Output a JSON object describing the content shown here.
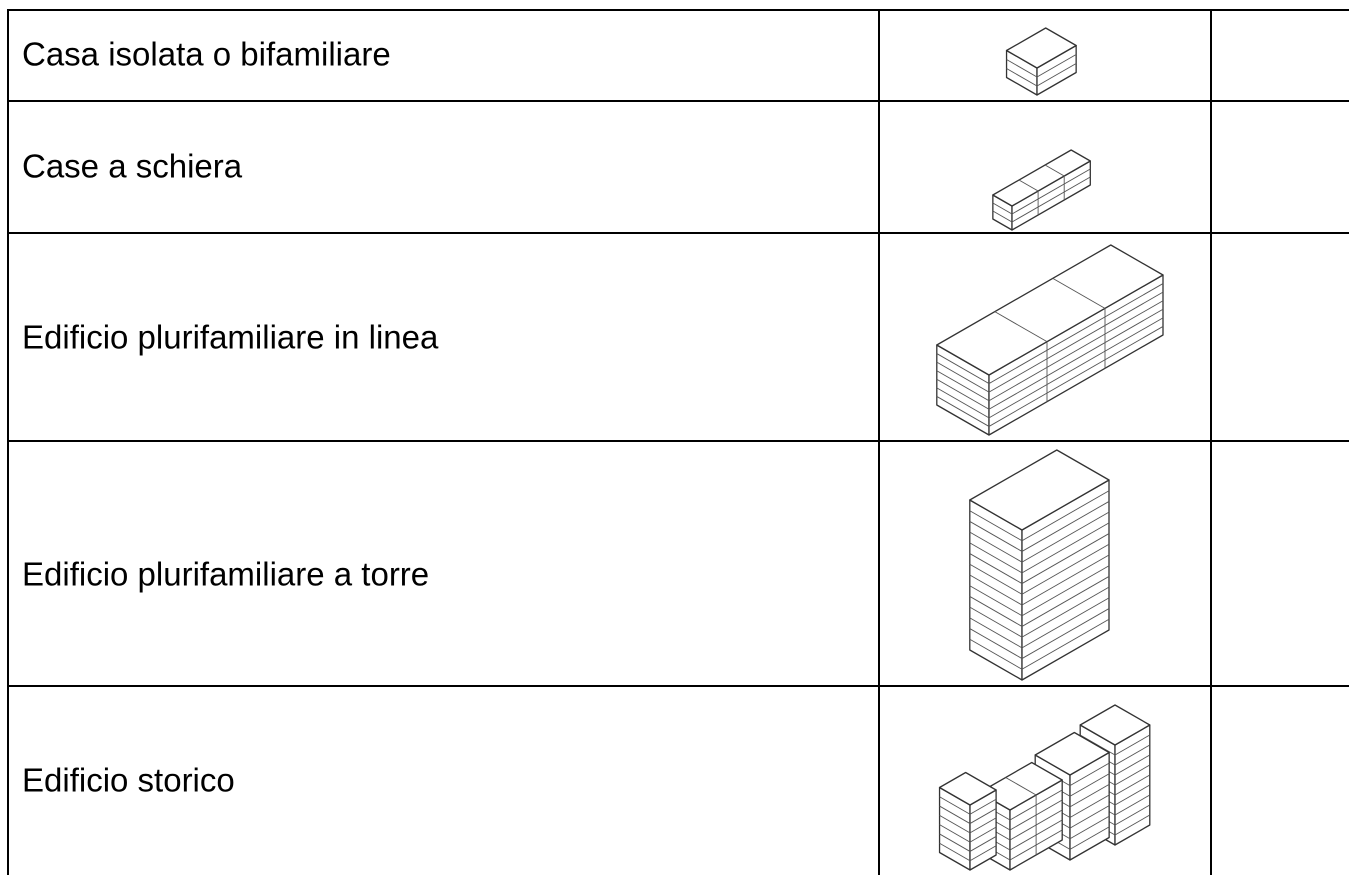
{
  "table": {
    "rows": [
      [
        "Casa isolata o bifamiliare"
      ],
      [
        "Case a schiera"
      ],
      [
        "Edificio plurifamiliare in linea"
      ],
      [
        "Edificio plurifamiliare a torre"
      ],
      [
        "Edificio storico"
      ]
    ]
  }
}
